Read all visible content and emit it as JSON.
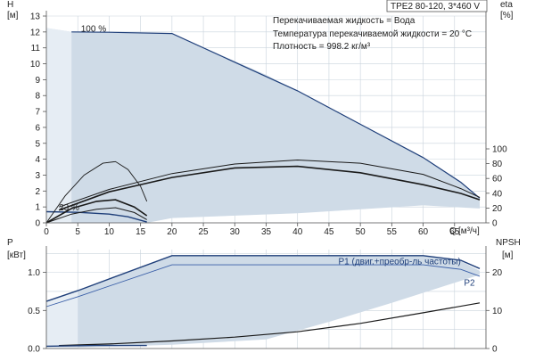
{
  "header": {
    "model": "TPE2 80-120, 3*460 V",
    "fluid": "Перекачиваемая жидкость = Вода",
    "temperature": "Температура перекачиваемой жидкости = 20 °C",
    "density": "Плотность = 998.2 кг/м³"
  },
  "colors": {
    "region_fill": "#cfdbe7",
    "region_fill_light": "#e6edf4",
    "curve_dark": "#1a1a1a",
    "curve_blue": "#1f3f7a",
    "line_blue": "#3a5fa8",
    "grid": "#c9d3dc"
  },
  "chart_data": [
    {
      "type": "line",
      "name": "head-efficiency",
      "ylabel_left": "H",
      "ylabel_left_unit": "[м]",
      "ylabel_right": "eta",
      "ylabel_right_unit": "[%]",
      "xlabel": "Q",
      "xlabel_unit": "[м³/ч]",
      "xlim": [
        0,
        70
      ],
      "ylim": [
        0,
        13
      ],
      "y2lim": [
        0,
        100
      ],
      "x_ticks": [
        0,
        5,
        10,
        15,
        20,
        25,
        30,
        35,
        40,
        45,
        50,
        55,
        60,
        65
      ],
      "y_ticks": [
        0,
        1,
        2,
        3,
        4,
        5,
        6,
        7,
        8,
        9,
        10,
        11,
        12,
        13
      ],
      "y2_ticks": [
        0,
        20,
        40,
        60,
        80,
        100
      ],
      "grid": true,
      "annotations": [
        {
          "text": "100 %",
          "x": 5.5,
          "y": 12.2
        },
        {
          "text": "23 %",
          "x": 2.0,
          "y": 0.95
        }
      ],
      "region": [
        [
          0,
          12.25
        ],
        [
          4,
          12.0
        ],
        [
          20,
          11.9
        ],
        [
          35,
          9.3
        ],
        [
          50,
          6.2
        ],
        [
          60,
          4.1
        ],
        [
          66,
          2.6
        ],
        [
          69,
          1.5
        ],
        [
          69,
          0.9
        ],
        [
          60,
          1.1
        ],
        [
          40,
          0.6
        ],
        [
          20,
          0.3
        ],
        [
          16,
          0
        ],
        [
          0,
          0
        ]
      ],
      "series": [
        {
          "role": "head_max",
          "values": [
            [
              4,
              12.0
            ],
            [
              10,
              11.98
            ],
            [
              20,
              11.9
            ],
            [
              30,
              10.1
            ],
            [
              40,
              8.3
            ],
            [
              50,
              6.2
            ],
            [
              60,
              4.1
            ],
            [
              66,
              2.55
            ],
            [
              69,
              1.55
            ]
          ]
        },
        {
          "role": "head_upper",
          "values": [
            [
              2,
              0.8
            ],
            [
              10,
              1.95
            ],
            [
              20,
              2.85
            ],
            [
              30,
              3.45
            ],
            [
              40,
              3.55
            ],
            [
              50,
              3.15
            ],
            [
              60,
              2.4
            ],
            [
              66,
              1.85
            ],
            [
              69,
              1.45
            ]
          ]
        },
        {
          "role": "eta_outer",
          "values": [
            [
              2,
              1.0
            ],
            [
              10,
              2.1
            ],
            [
              20,
              3.1
            ],
            [
              30,
              3.7
            ],
            [
              40,
              3.95
            ],
            [
              50,
              3.75
            ],
            [
              60,
              3.05
            ],
            [
              66,
              2.15
            ],
            [
              69,
              1.6
            ]
          ]
        },
        {
          "role": "head_min",
          "values": [
            [
              0,
              0.7
            ],
            [
              5,
              0.66
            ],
            [
              10,
              0.55
            ],
            [
              13,
              0.38
            ],
            [
              16,
              0.05
            ]
          ]
        },
        {
          "role": "eta_min_curve",
          "values": [
            [
              0,
              0
            ],
            [
              4,
              0.9
            ],
            [
              8,
              1.35
            ],
            [
              11,
              1.45
            ],
            [
              14,
              1.0
            ],
            [
              16,
              0.45
            ]
          ]
        },
        {
          "role": "eta_inner_curve",
          "values": [
            [
              0,
              0
            ],
            [
              3,
              1.7
            ],
            [
              6,
              3.0
            ],
            [
              9,
              3.75
            ],
            [
              11,
              3.85
            ],
            [
              13,
              3.35
            ],
            [
              15,
              2.3
            ],
            [
              16,
              1.35
            ]
          ]
        },
        {
          "role": "low_curve",
          "values": [
            [
              0,
              0
            ],
            [
              4,
              0.55
            ],
            [
              8,
              0.85
            ],
            [
              11,
              0.95
            ],
            [
              14,
              0.65
            ],
            [
              16,
              0.2
            ]
          ]
        }
      ]
    },
    {
      "type": "line",
      "name": "power-npsh",
      "ylabel_left": "P",
      "ylabel_left_unit": "[кВт]",
      "ylabel_right": "NPSH",
      "ylabel_right_unit": "[м]",
      "xlim": [
        0,
        70
      ],
      "ylim": [
        0,
        1.3
      ],
      "y2lim": [
        0,
        26
      ],
      "y_ticks": [
        0.0,
        0.5,
        1.0
      ],
      "y_tick_labels": [
        "0.0",
        "0.5",
        "1.0"
      ],
      "y2_ticks": [
        0,
        10,
        20
      ],
      "grid": true,
      "labels": [
        {
          "text": "P1 (двиг.+преобр-ль частоты)",
          "x": 46.5,
          "y": 1.14
        },
        {
          "text": "P2",
          "x": 66.5,
          "y": 0.86
        }
      ],
      "region": [
        [
          0,
          0.62
        ],
        [
          5,
          0.76
        ],
        [
          20,
          1.22
        ],
        [
          60,
          1.22
        ],
        [
          66,
          1.15
        ],
        [
          69,
          1.02
        ],
        [
          69,
          0.97
        ],
        [
          55,
          0.6
        ],
        [
          45,
          0.35
        ],
        [
          35,
          0.12
        ],
        [
          20,
          0.05
        ],
        [
          0,
          0.0
        ]
      ],
      "series": [
        {
          "role": "P1",
          "values": [
            [
              0,
              0.62
            ],
            [
              5,
              0.76
            ],
            [
              20,
              1.22
            ],
            [
              40,
              1.22
            ],
            [
              60,
              1.22
            ],
            [
              66,
              1.16
            ],
            [
              69,
              1.05
            ]
          ]
        },
        {
          "role": "P2",
          "values": [
            [
              0,
              0.55
            ],
            [
              5,
              0.68
            ],
            [
              20,
              1.1
            ],
            [
              40,
              1.1
            ],
            [
              60,
              1.1
            ],
            [
              66,
              1.04
            ],
            [
              69,
              0.95
            ]
          ]
        },
        {
          "role": "NPSH",
          "values": [
            [
              2,
              0.04
            ],
            [
              10,
              0.06
            ],
            [
              20,
              0.1
            ],
            [
              30,
              0.15
            ],
            [
              40,
              0.22
            ],
            [
              50,
              0.33
            ],
            [
              60,
              0.47
            ],
            [
              69,
              0.6
            ]
          ]
        },
        {
          "role": "P_min",
          "values": [
            [
              0,
              0.03
            ],
            [
              8,
              0.04
            ],
            [
              16,
              0.04
            ]
          ]
        }
      ]
    }
  ]
}
